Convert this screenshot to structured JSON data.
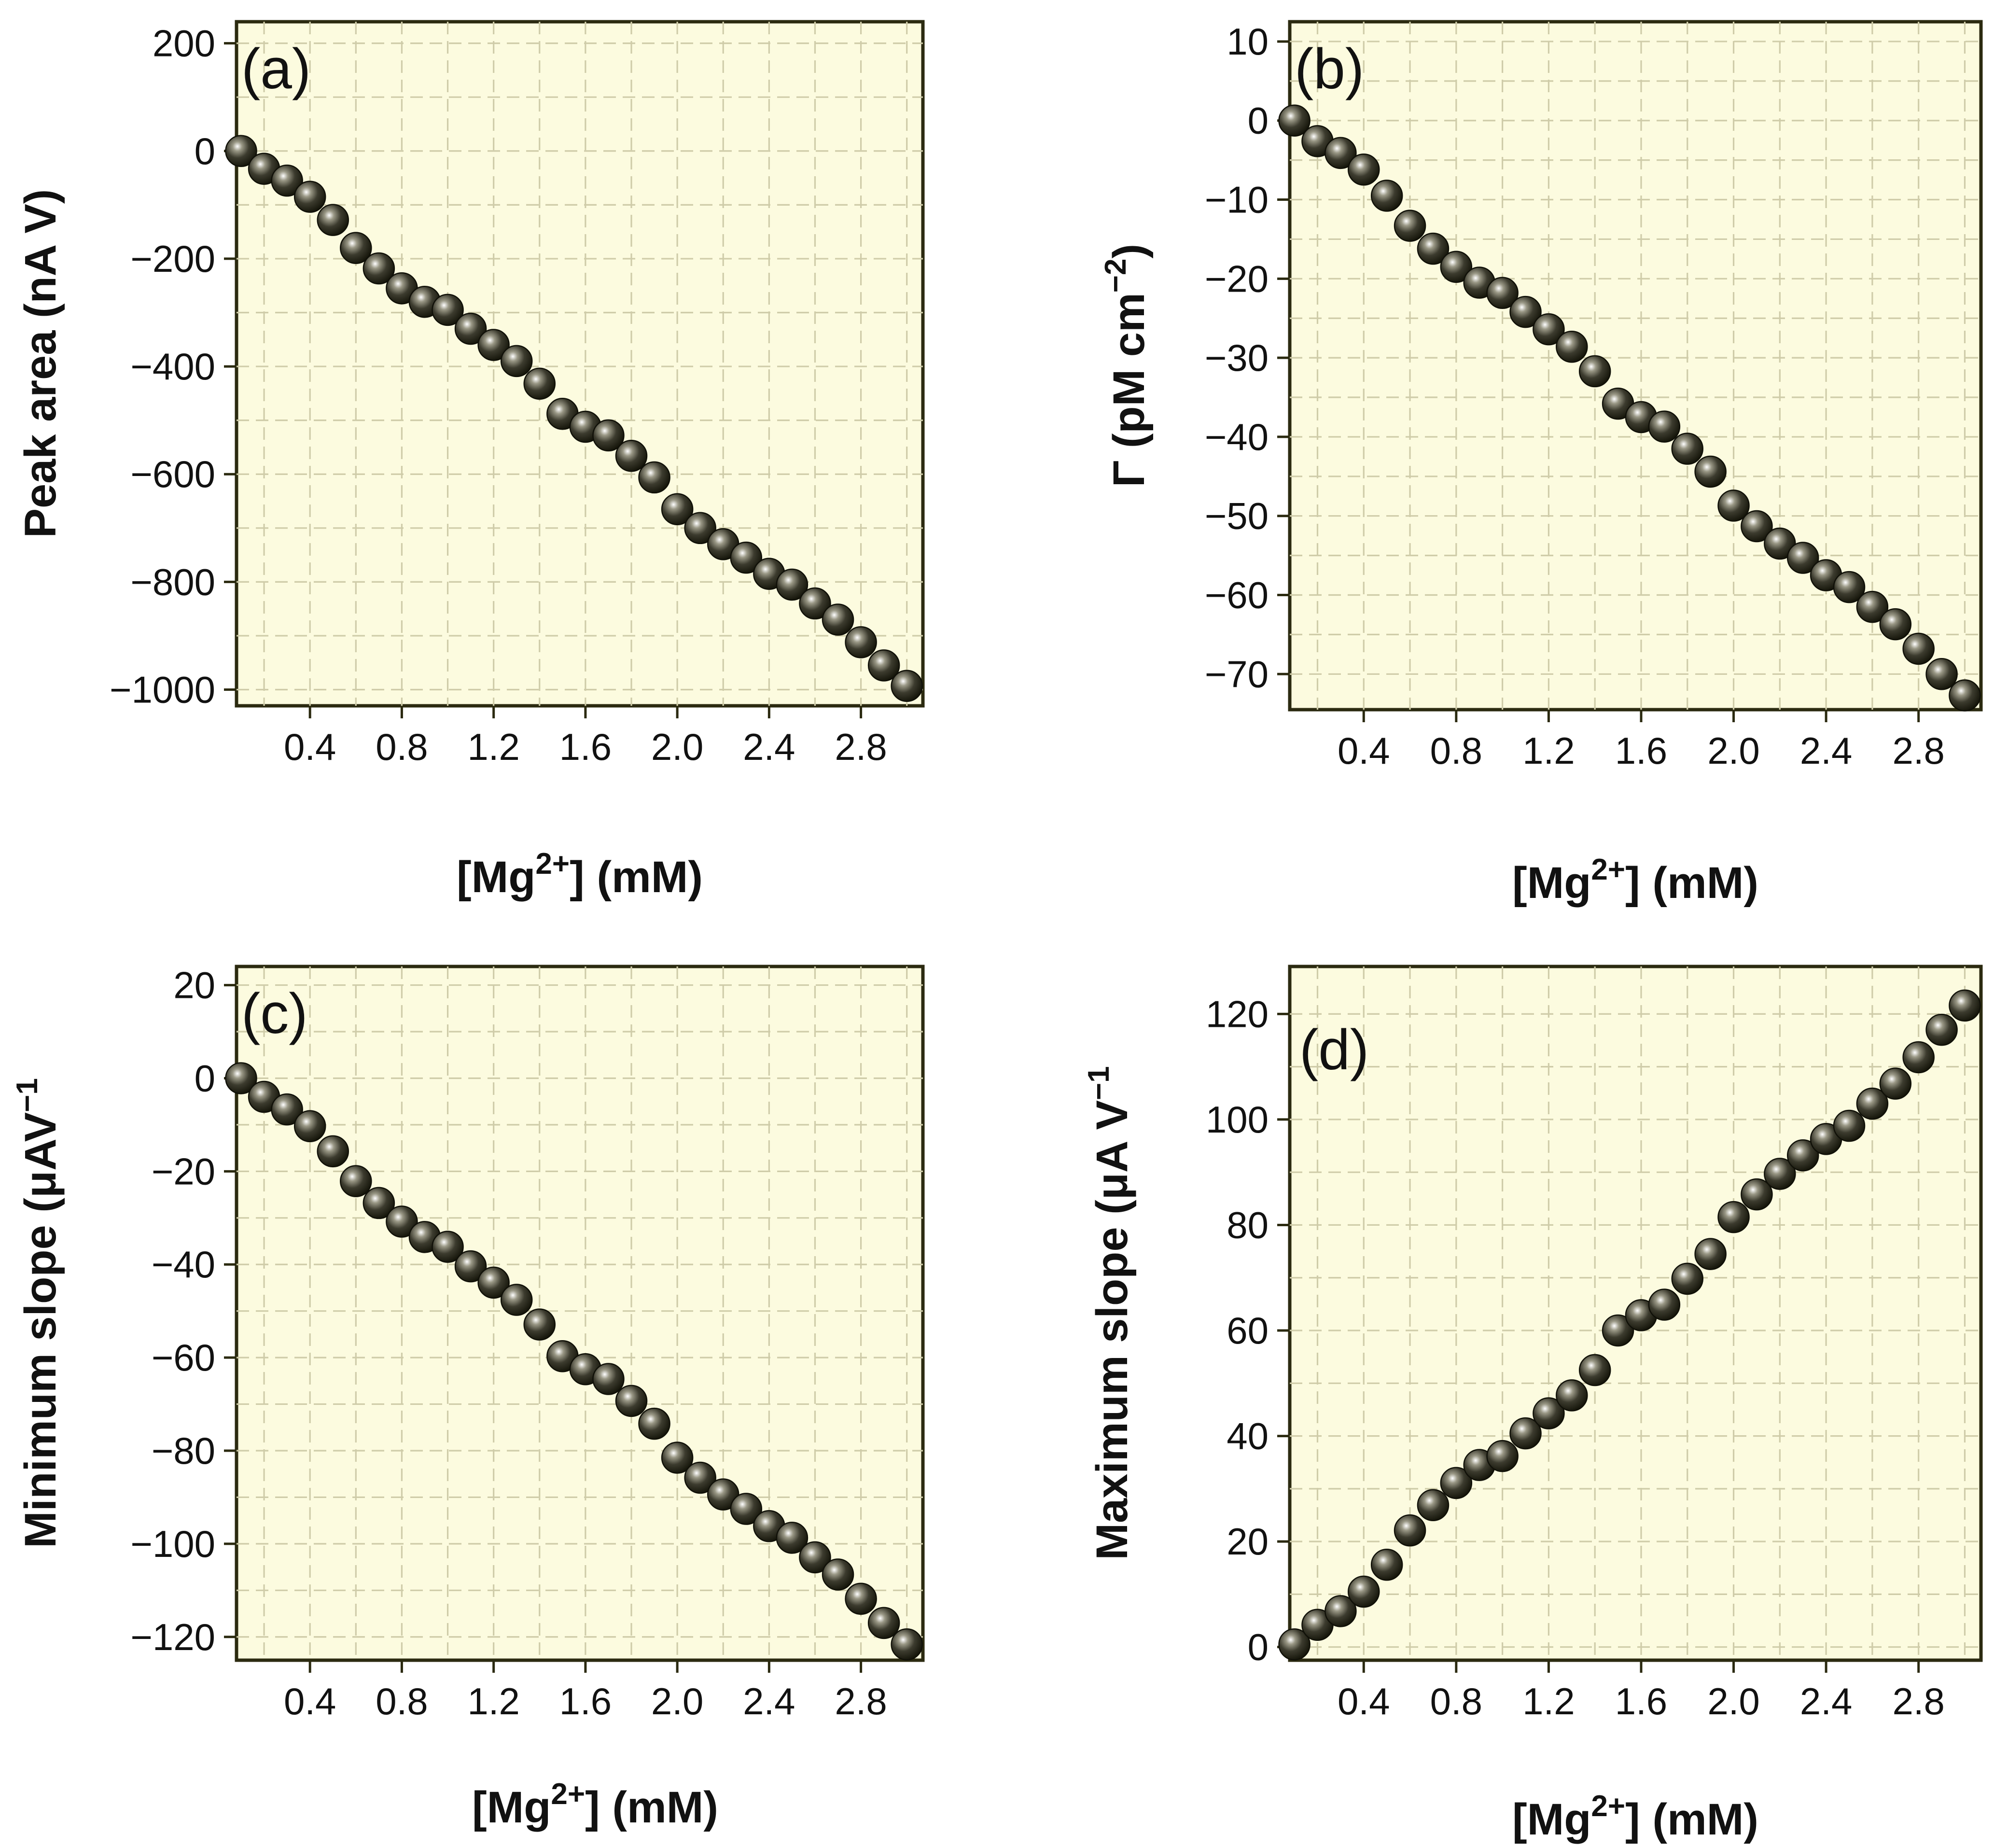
{
  "chart_data": [
    {
      "type": "scatter",
      "label": "(a)",
      "title": "",
      "xlabel_prefix": "[Mg",
      "xlabel_sup": "2+",
      "xlabel_suffix": "] (mM)",
      "ylabel_prefix": "Peak area (nA V)",
      "ylabel_sup": "",
      "ylabel_suffix": "",
      "xlim": [
        0.08,
        3.07
      ],
      "ylim": [
        -1030,
        240
      ],
      "x_ticks": [
        0.4,
        0.8,
        1.2,
        1.6,
        2.0,
        2.4,
        2.8
      ],
      "x_tick_labels": [
        "0.4",
        "0.8",
        "1.2",
        "1.6",
        "2.0",
        "2.4",
        "2.8"
      ],
      "y_ticks": [
        -1000,
        -800,
        -600,
        -400,
        -200,
        0,
        200
      ],
      "y_tick_labels": [
        "−1000",
        "−800",
        "−600",
        "−400",
        "−200",
        "0",
        "200"
      ],
      "grid": true,
      "x": [
        0.1,
        0.2,
        0.3,
        0.4,
        0.5,
        0.6,
        0.7,
        0.8,
        0.9,
        1.0,
        1.1,
        1.2,
        1.3,
        1.4,
        1.5,
        1.6,
        1.7,
        1.8,
        1.9,
        2.0,
        2.1,
        2.2,
        2.3,
        2.4,
        2.5,
        2.6,
        2.7,
        2.8,
        2.9,
        3.0
      ],
      "y": [
        0,
        -33,
        -55,
        -85,
        -128,
        -180,
        -218,
        -255,
        -280,
        -295,
        -330,
        -360,
        -390,
        -432,
        -488,
        -512,
        -528,
        -566,
        -606,
        -665,
        -700,
        -730,
        -755,
        -785,
        -805,
        -840,
        -870,
        -912,
        -955,
        -993
      ]
    },
    {
      "type": "scatter",
      "label": "(b)",
      "title": "",
      "xlabel_prefix": "[Mg",
      "xlabel_sup": "2+",
      "xlabel_suffix": "] (mM)",
      "ylabel_prefix": "Γ (pM cm",
      "ylabel_sup": "−2",
      "ylabel_suffix": ")",
      "xlim": [
        0.08,
        3.07
      ],
      "ylim": [
        -74.5,
        12.5
      ],
      "x_ticks": [
        0.4,
        0.8,
        1.2,
        1.6,
        2.0,
        2.4,
        2.8
      ],
      "x_tick_labels": [
        "0.4",
        "0.8",
        "1.2",
        "1.6",
        "2.0",
        "2.4",
        "2.8"
      ],
      "y_ticks": [
        -70,
        -60,
        -50,
        -40,
        -30,
        -20,
        -10,
        0,
        10
      ],
      "y_tick_labels": [
        "−70",
        "−60",
        "−50",
        "−40",
        "−30",
        "−20",
        "−10",
        "0",
        "10"
      ],
      "grid": true,
      "x": [
        0.1,
        0.2,
        0.3,
        0.4,
        0.5,
        0.6,
        0.7,
        0.8,
        0.9,
        1.0,
        1.1,
        1.2,
        1.3,
        1.4,
        1.5,
        1.6,
        1.7,
        1.8,
        1.9,
        2.0,
        2.1,
        2.2,
        2.3,
        2.4,
        2.5,
        2.6,
        2.7,
        2.8,
        2.9,
        3.0
      ],
      "y": [
        0,
        -2.6,
        -4.1,
        -6.2,
        -9.5,
        -13.3,
        -16.2,
        -18.5,
        -20.5,
        -21.8,
        -24.2,
        -26.4,
        -28.6,
        -31.7,
        -35.8,
        -37.5,
        -38.7,
        -41.5,
        -44.4,
        -48.7,
        -51.3,
        -53.5,
        -55.3,
        -57.5,
        -59.0,
        -61.5,
        -63.7,
        -66.8,
        -70.0,
        -72.7
      ]
    },
    {
      "type": "scatter",
      "label": "(c)",
      "title": "",
      "xlabel_prefix": "[Mg",
      "xlabel_sup": "2+",
      "xlabel_suffix": "] (mM)",
      "ylabel_prefix": "Minimum slope (μAV",
      "ylabel_sup": "−1",
      "ylabel_suffix": "",
      "xlim": [
        0.08,
        3.07
      ],
      "ylim": [
        -125,
        24
      ],
      "x_ticks": [
        0.4,
        0.8,
        1.2,
        1.6,
        2.0,
        2.4,
        2.8
      ],
      "x_tick_labels": [
        "0.4",
        "0.8",
        "1.2",
        "1.6",
        "2.0",
        "2.4",
        "2.8"
      ],
      "y_ticks": [
        -120,
        -100,
        -80,
        -60,
        -40,
        -20,
        0,
        20
      ],
      "y_tick_labels": [
        "−120",
        "−100",
        "−80",
        "−60",
        "−40",
        "−20",
        "0",
        "20"
      ],
      "grid": true,
      "x": [
        0.1,
        0.2,
        0.3,
        0.4,
        0.5,
        0.6,
        0.7,
        0.8,
        0.9,
        1.0,
        1.1,
        1.2,
        1.3,
        1.4,
        1.5,
        1.6,
        1.7,
        1.8,
        1.9,
        2.0,
        2.1,
        2.2,
        2.3,
        2.4,
        2.5,
        2.6,
        2.7,
        2.8,
        2.9,
        3.0
      ],
      "y": [
        0,
        -4,
        -6.7,
        -10.3,
        -15.7,
        -22.1,
        -26.8,
        -30.8,
        -34.1,
        -36.2,
        -40.4,
        -43.9,
        -47.6,
        -52.9,
        -59.7,
        -62.5,
        -64.6,
        -69.3,
        -74.2,
        -81.5,
        -85.8,
        -89.4,
        -92.5,
        -96.2,
        -98.7,
        -102.9,
        -106.6,
        -111.8,
        -117.0,
        -121.6
      ]
    },
    {
      "type": "scatter",
      "label": "(d)",
      "title": "",
      "xlabel_prefix": "[Mg",
      "xlabel_sup": "2+",
      "xlabel_suffix": "] (mM)",
      "ylabel_prefix": "Maximum slope (μA V",
      "ylabel_sup": "−1",
      "ylabel_suffix": "",
      "xlim": [
        0.08,
        3.07
      ],
      "ylim": [
        -2.5,
        129
      ],
      "x_ticks": [
        0.4,
        0.8,
        1.2,
        1.6,
        2.0,
        2.4,
        2.8
      ],
      "x_tick_labels": [
        "0.4",
        "0.8",
        "1.2",
        "1.6",
        "2.0",
        "2.4",
        "2.8"
      ],
      "y_ticks": [
        0,
        20,
        40,
        60,
        80,
        100,
        120
      ],
      "y_tick_labels": [
        "0",
        "20",
        "40",
        "60",
        "80",
        "100",
        "120"
      ],
      "grid": true,
      "x": [
        0.1,
        0.2,
        0.3,
        0.4,
        0.5,
        0.6,
        0.7,
        0.8,
        0.9,
        1.0,
        1.1,
        1.2,
        1.3,
        1.4,
        1.5,
        1.6,
        1.7,
        1.8,
        1.9,
        2.0,
        2.1,
        2.2,
        2.3,
        2.4,
        2.5,
        2.6,
        2.7,
        2.8,
        2.9,
        3.0
      ],
      "y": [
        0.5,
        4.2,
        6.8,
        10.5,
        15.6,
        22.1,
        26.9,
        31.1,
        34.5,
        36.2,
        40.5,
        44.3,
        47.7,
        52.5,
        60.0,
        62.9,
        64.9,
        69.8,
        74.5,
        81.5,
        85.8,
        89.7,
        93.2,
        96.3,
        98.8,
        103.0,
        106.8,
        111.8,
        117.0,
        121.6
      ]
    }
  ],
  "colors": {
    "plot_bg": "#fcfbdf",
    "frame": "#2b2a10",
    "grid": "#cfcca9",
    "marker_dark": "#1a1a0c",
    "marker_mid": "#49483a",
    "marker_light": "#ffffff"
  }
}
